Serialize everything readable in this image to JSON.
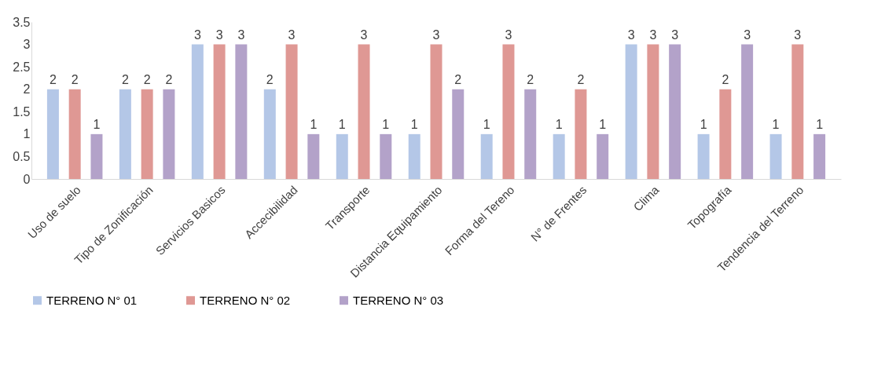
{
  "chart_data": {
    "type": "bar",
    "categories": [
      "Uso de suelo",
      "Tipo de Zonificación",
      "Servicios Basicos",
      "Accecibilidad",
      "Transporte",
      "Distancia Equipamiento",
      "Forma del Tereno",
      "N° de Frentes",
      "Clima",
      "Topografía",
      "Tendencia del Terreno"
    ],
    "series": [
      {
        "name": "TERRENO N° 01",
        "color": "#b4c7e7",
        "values": [
          2,
          2,
          3,
          2,
          1,
          1,
          1,
          1,
          3,
          1,
          1
        ]
      },
      {
        "name": "TERRENO N° 02",
        "color": "#df9894",
        "values": [
          2,
          2,
          3,
          3,
          3,
          3,
          3,
          2,
          3,
          2,
          3
        ]
      },
      {
        "name": "TERRENO N° 03",
        "color": "#b3a2c9",
        "values": [
          1,
          2,
          3,
          1,
          1,
          2,
          2,
          1,
          3,
          3,
          1
        ]
      }
    ],
    "ylim": [
      0,
      3.5
    ],
    "yticks": [
      0,
      0.5,
      1,
      1.5,
      2,
      2.5,
      3,
      3.5
    ],
    "data_labels": true,
    "legend": "bottom",
    "grid": false
  }
}
